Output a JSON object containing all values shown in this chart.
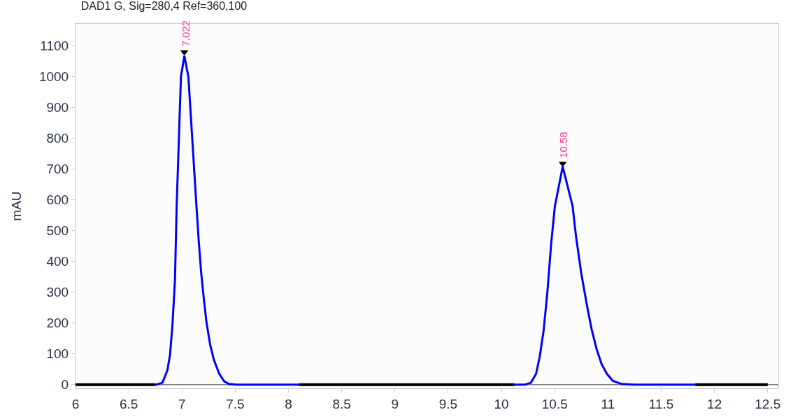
{
  "chart_data": {
    "type": "line",
    "title": "DAD1 G, Sig=280,4 Ref=360,100",
    "ylabel": "mAU",
    "xlim": [
      6,
      12.6
    ],
    "ylim": [
      -12,
      1172
    ],
    "xticks": [
      6,
      6.5,
      7,
      7.5,
      8,
      8.5,
      9,
      9.5,
      10,
      10.5,
      11,
      11.5,
      12,
      12.5
    ],
    "yticks": [
      0,
      100,
      200,
      300,
      400,
      500,
      600,
      700,
      800,
      900,
      1000,
      1100
    ],
    "grid": false,
    "marker": "none",
    "line_style": "solid",
    "series": [
      {
        "color": "#0000ff",
        "x": [
          6,
          6.757,
          6.816,
          6.863,
          6.887,
          6.91,
          6.934,
          6.95,
          6.99,
          7.022,
          7.06,
          7.135,
          7.158,
          7.18,
          7.206,
          7.23,
          7.265,
          7.3,
          7.35,
          7.395,
          7.44,
          7.51,
          10.22,
          10.277,
          10.325,
          10.36,
          10.395,
          10.43,
          10.467,
          10.502,
          10.575,
          10.668,
          10.7,
          10.75,
          10.8,
          10.846,
          10.893,
          10.94,
          10.99,
          11.047,
          11.13,
          11.25,
          12.5
        ],
        "values": [
          0,
          0,
          6,
          47,
          96,
          193,
          340,
          583,
          1000,
          1068,
          1000,
          583,
          462,
          364,
          275,
          202,
          128,
          80,
          35,
          11,
          2,
          0,
          0,
          6,
          35,
          92,
          173,
          295,
          458,
          580,
          708,
          580,
          482,
          360,
          263,
          181,
          116,
          67,
          35,
          12,
          2,
          0,
          0
        ]
      },
      {
        "color": "#000000",
        "x": [
          6,
          6.75,
          6.76,
          8.1,
          10.12,
          10.13,
          11.82,
          12.5
        ],
        "values": [
          0,
          0,
          null,
          0,
          0,
          null,
          0,
          0
        ]
      },
      {
        "type": "scatter",
        "marker": "triangle",
        "color": "#000000",
        "x": [
          7.022,
          10.575
        ],
        "values": [
          1080,
          718
        ]
      }
    ],
    "ref_lines": [
      {
        "axis": "y",
        "value": 0,
        "color": "#808080"
      }
    ],
    "annotations": [
      {
        "text": "7.022",
        "x": 7.022,
        "y": 1080
      },
      {
        "text": "10.58",
        "x": 10.575,
        "y": 718
      }
    ]
  }
}
